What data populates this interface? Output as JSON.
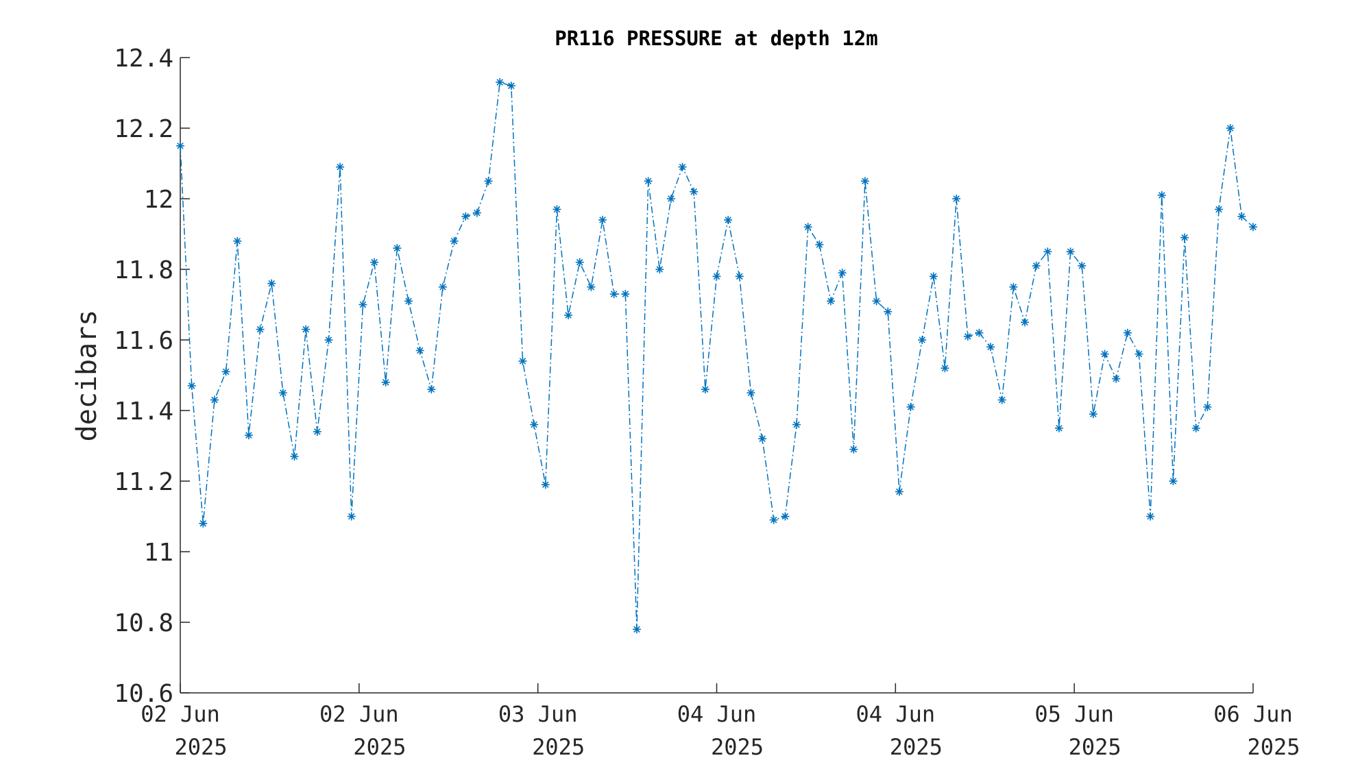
{
  "chart_data": {
    "type": "line",
    "title": "PR116 PRESSURE at depth 12m",
    "xlabel": "",
    "ylabel": "decibars",
    "ylim": [
      10.6,
      12.4
    ],
    "yticks": [
      "12.4",
      "12.2",
      "12",
      "11.8",
      "11.6",
      "11.4",
      "11.2",
      "11",
      "10.8",
      "10.6"
    ],
    "xticks": [
      {
        "day": "02 Jun",
        "year": "2025"
      },
      {
        "day": "02 Jun",
        "year": "2025"
      },
      {
        "day": "03 Jun",
        "year": "2025"
      },
      {
        "day": "04 Jun",
        "year": "2025"
      },
      {
        "day": "04 Jun",
        "year": "2025"
      },
      {
        "day": "05 Jun",
        "year": "2025"
      },
      {
        "day": "06 Jun",
        "year": "2025"
      }
    ],
    "grid": false,
    "line_style": "dash-dot",
    "marker": "asterisk",
    "series": [
      {
        "color": "#0072BD",
        "values": [
          12.15,
          11.47,
          11.08,
          11.43,
          11.51,
          11.88,
          11.33,
          11.63,
          11.76,
          11.45,
          11.27,
          11.63,
          11.34,
          11.6,
          12.09,
          11.1,
          11.7,
          11.82,
          11.48,
          11.86,
          11.71,
          11.57,
          11.46,
          11.75,
          11.88,
          11.95,
          11.96,
          12.05,
          12.33,
          12.32,
          11.54,
          11.36,
          11.19,
          11.97,
          11.67,
          11.82,
          11.75,
          11.94,
          11.73,
          11.73,
          10.78,
          12.05,
          11.8,
          12.0,
          12.09,
          12.02,
          11.46,
          11.78,
          11.94,
          11.78,
          11.45,
          11.32,
          11.09,
          11.1,
          11.36,
          11.92,
          11.87,
          11.71,
          11.79,
          11.29,
          12.05,
          11.71,
          11.68,
          11.17,
          11.41,
          11.6,
          11.78,
          11.52,
          12.0,
          11.61,
          11.62,
          11.58,
          11.43,
          11.75,
          11.65,
          11.81,
          11.85,
          11.35,
          11.85,
          11.81,
          11.39,
          11.56,
          11.49,
          11.62,
          11.56,
          11.1,
          12.01,
          11.2,
          11.89,
          11.35,
          11.41,
          11.97,
          12.2,
          11.95,
          11.92
        ]
      }
    ]
  }
}
